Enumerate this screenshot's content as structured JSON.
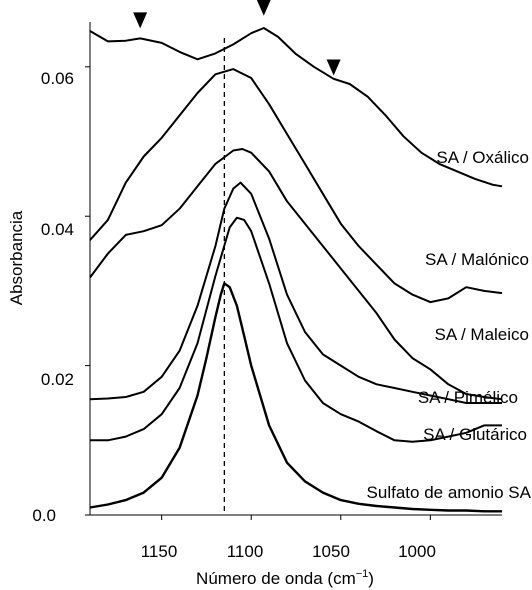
{
  "chart_data": {
    "type": "line",
    "xlabel": "Número de onda (cm",
    "xlabel_sup": "−1",
    "xlabel_close": ")",
    "ylabel": "Absorbancia",
    "xlim": [
      1190,
      960
    ],
    "ylim": [
      0,
      0.066
    ],
    "x_reversed": true,
    "x_ticks": [
      1150,
      1100,
      1050,
      1000
    ],
    "x_tick_labels": [
      "1150",
      "1100",
      "1050",
      "1000"
    ],
    "y_ticks": [
      0,
      0.02,
      0.04,
      0.06
    ],
    "y_tick_labels": [
      "0.0",
      "0.02",
      "0.04",
      "0.06"
    ],
    "grid": false,
    "reference_line": {
      "x": 1115,
      "style": "dashed"
    },
    "markers": [
      {
        "x": 1162,
        "y": 0.0638,
        "shape": "down-triangle"
      },
      {
        "x": 1093,
        "y": 0.0655,
        "shape": "down-triangle"
      },
      {
        "x": 1054,
        "y": 0.0575,
        "shape": "down-triangle"
      }
    ],
    "series": [
      {
        "name": "SA / Oxálico",
        "x": [
          1190,
          1180,
          1170,
          1162,
          1150,
          1140,
          1130,
          1120,
          1110,
          1100,
          1093,
          1085,
          1075,
          1065,
          1054,
          1045,
          1035,
          1025,
          1015,
          1005,
          995,
          985,
          975,
          965,
          960
        ],
        "y": [
          0.0648,
          0.0634,
          0.0635,
          0.0638,
          0.0632,
          0.062,
          0.061,
          0.0618,
          0.063,
          0.0645,
          0.0652,
          0.064,
          0.0617,
          0.06,
          0.0584,
          0.0577,
          0.056,
          0.0535,
          0.0507,
          0.0485,
          0.047,
          0.046,
          0.045,
          0.0442,
          0.044
        ]
      },
      {
        "name": "SA / Malónico",
        "x": [
          1190,
          1180,
          1170,
          1160,
          1150,
          1140,
          1130,
          1120,
          1110,
          1100,
          1090,
          1080,
          1070,
          1060,
          1050,
          1040,
          1030,
          1020,
          1010,
          1000,
          990,
          980,
          970,
          960
        ],
        "y": [
          0.0368,
          0.0395,
          0.0445,
          0.048,
          0.0505,
          0.0535,
          0.0565,
          0.059,
          0.0597,
          0.0585,
          0.055,
          0.051,
          0.047,
          0.043,
          0.039,
          0.036,
          0.0335,
          0.031,
          0.0295,
          0.0285,
          0.029,
          0.0305,
          0.03,
          0.0297
        ]
      },
      {
        "name": "SA / Maleico",
        "x": [
          1190,
          1180,
          1170,
          1160,
          1150,
          1140,
          1130,
          1120,
          1110,
          1105,
          1100,
          1090,
          1080,
          1070,
          1060,
          1050,
          1040,
          1030,
          1020,
          1010,
          1000,
          990,
          980,
          970,
          960
        ],
        "y": [
          0.0318,
          0.035,
          0.0375,
          0.038,
          0.0388,
          0.041,
          0.044,
          0.047,
          0.0488,
          0.049,
          0.0485,
          0.046,
          0.042,
          0.039,
          0.036,
          0.033,
          0.03,
          0.027,
          0.0235,
          0.021,
          0.0195,
          0.0175,
          0.0162,
          0.0158,
          0.0155
        ]
      },
      {
        "name": "SA / Pimélico",
        "x": [
          1190,
          1180,
          1170,
          1160,
          1150,
          1140,
          1130,
          1120,
          1115,
          1110,
          1106,
          1100,
          1090,
          1080,
          1070,
          1060,
          1050,
          1040,
          1030,
          1020,
          1010,
          1000,
          990,
          980,
          970,
          960
        ],
        "y": [
          0.0155,
          0.0156,
          0.0158,
          0.0165,
          0.0185,
          0.022,
          0.028,
          0.036,
          0.041,
          0.0437,
          0.0445,
          0.043,
          0.037,
          0.0295,
          0.0245,
          0.0215,
          0.02,
          0.0185,
          0.0175,
          0.017,
          0.0165,
          0.016,
          0.0155,
          0.015,
          0.015,
          0.015
        ]
      },
      {
        "name": "SA / Glutárico",
        "x": [
          1190,
          1180,
          1170,
          1160,
          1150,
          1140,
          1130,
          1120,
          1112,
          1108,
          1104,
          1100,
          1090,
          1080,
          1070,
          1060,
          1050,
          1040,
          1030,
          1020,
          1010,
          1000,
          990,
          980,
          970,
          960
        ],
        "y": [
          0.01,
          0.01,
          0.0105,
          0.0115,
          0.0135,
          0.017,
          0.023,
          0.032,
          0.0385,
          0.0398,
          0.0395,
          0.038,
          0.031,
          0.023,
          0.018,
          0.015,
          0.0135,
          0.0125,
          0.0112,
          0.01,
          0.0098,
          0.01,
          0.0105,
          0.011,
          0.012,
          0.012
        ]
      },
      {
        "name": "Sulfato de amonio SA",
        "x": [
          1190,
          1180,
          1170,
          1160,
          1150,
          1140,
          1130,
          1125,
          1120,
          1117,
          1115,
          1112,
          1108,
          1104,
          1100,
          1090,
          1080,
          1070,
          1060,
          1050,
          1040,
          1030,
          1020,
          1010,
          1000,
          990,
          980,
          970,
          960
        ],
        "y": [
          0.001,
          0.0014,
          0.002,
          0.003,
          0.005,
          0.009,
          0.016,
          0.021,
          0.0265,
          0.0295,
          0.031,
          0.0305,
          0.028,
          0.024,
          0.02,
          0.012,
          0.007,
          0.0045,
          0.003,
          0.002,
          0.0015,
          0.0012,
          0.001,
          0.0008,
          0.0007,
          0.0006,
          0.0006,
          0.0005,
          0.0005
        ]
      }
    ],
    "series_labels": [
      "SA / Oxálico",
      "SA / Malónico",
      "SA / Maleico",
      "SA / Pimélico",
      "SA / Glutárico",
      "Sulfato de amonio SA"
    ]
  }
}
